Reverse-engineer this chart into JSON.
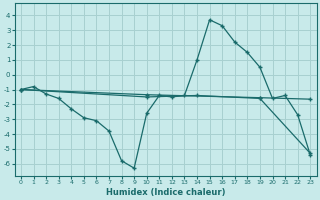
{
  "xlabel": "Humidex (Indice chaleur)",
  "bg_color": "#c8eaea",
  "grid_color": "#a8d0d0",
  "line_color": "#1a6b6b",
  "xlim": [
    -0.5,
    23.5
  ],
  "ylim": [
    -6.8,
    4.8
  ],
  "yticks": [
    -6,
    -5,
    -4,
    -3,
    -2,
    -1,
    0,
    1,
    2,
    3,
    4
  ],
  "xticks": [
    0,
    1,
    2,
    3,
    4,
    5,
    6,
    7,
    8,
    9,
    10,
    11,
    12,
    13,
    14,
    15,
    16,
    17,
    18,
    19,
    20,
    21,
    22,
    23
  ],
  "series0_x": [
    0,
    1,
    2,
    3,
    4,
    5,
    6,
    7,
    8,
    9,
    10,
    11,
    12,
    13,
    14,
    15,
    16,
    17,
    18,
    19,
    20,
    21,
    22,
    23
  ],
  "series0_y": [
    -1.0,
    -0.8,
    -1.3,
    -1.6,
    -2.3,
    -2.9,
    -3.1,
    -3.8,
    -5.8,
    -6.3,
    -2.6,
    -1.4,
    -1.5,
    -1.4,
    1.0,
    3.7,
    3.3,
    2.2,
    1.5,
    0.5,
    -1.6,
    -1.4,
    -2.7,
    -5.4
  ],
  "series1_x": [
    0,
    10,
    19,
    23
  ],
  "series1_y": [
    -1.0,
    -1.35,
    -1.55,
    -1.65
  ],
  "series2_x": [
    0,
    10,
    14,
    19,
    23
  ],
  "series2_y": [
    -1.0,
    -1.5,
    -1.4,
    -1.6,
    -5.3
  ]
}
